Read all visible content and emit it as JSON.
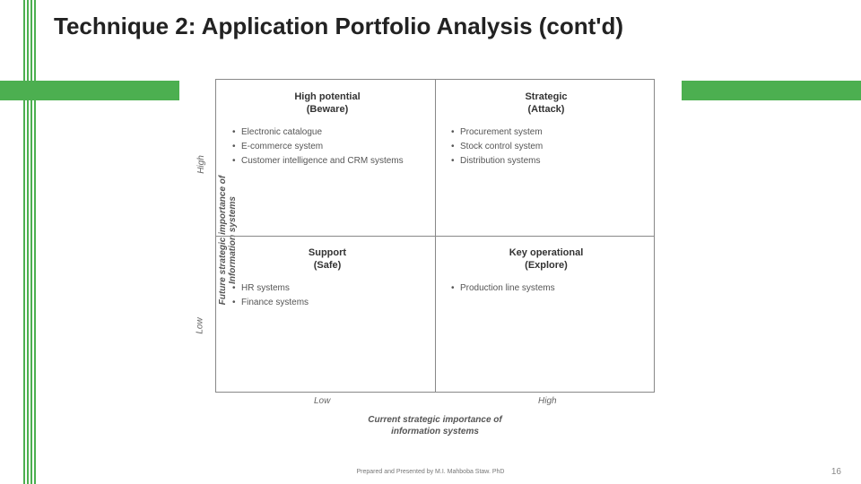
{
  "title": "Technique 2: Application Portfolio Analysis (cont'd)",
  "colors": {
    "accent": "#4caf50",
    "border": "#888888",
    "text": "#333333",
    "muted": "#666666",
    "background": "#ffffff"
  },
  "matrix": {
    "type": "infographic",
    "y_axis": {
      "label": "Future strategic importance of\nInformation systems",
      "ticks": {
        "high": "High",
        "low": "Low"
      }
    },
    "x_axis": {
      "label": "Current strategic importance of\ninformation systems",
      "ticks": {
        "low": "Low",
        "high": "High"
      }
    },
    "quadrants": {
      "tl": {
        "title": "High potential",
        "subtitle": "(Beware)",
        "items": [
          "Electronic catalogue",
          "E-commerce system",
          "Customer intelligence and CRM systems"
        ]
      },
      "tr": {
        "title": "Strategic",
        "subtitle": "(Attack)",
        "items": [
          "Procurement system",
          "Stock control system",
          "Distribution systems"
        ]
      },
      "bl": {
        "title": "Support",
        "subtitle": "(Safe)",
        "items": [
          "HR systems",
          "Finance systems"
        ]
      },
      "br": {
        "title": "Key operational",
        "subtitle": "(Explore)",
        "items": [
          "Production line systems"
        ]
      }
    }
  },
  "footer": {
    "credit": "Prepared and Presented by M.I. Mahboba Staw. PhD",
    "page": "16"
  }
}
